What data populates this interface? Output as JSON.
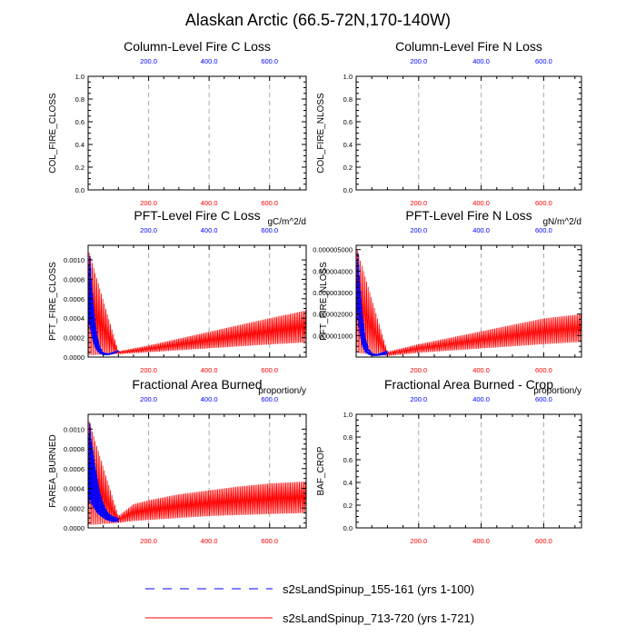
{
  "figure_title": "Alaskan Arctic (66.5-72N,170-140W)",
  "colors": {
    "blue": "#0000ff",
    "red": "#ff0000",
    "black": "#000000",
    "grid": "#aaaaaa"
  },
  "legend": [
    {
      "label": "s2sLandSpinup_155-161 (yrs 1-100)",
      "color": "#0000ff",
      "style": "dashed"
    },
    {
      "label": "s2sLandSpinup_713-720 (yrs 1-721)",
      "color": "#ff0000",
      "style": "solid"
    }
  ],
  "chart_data": [
    {
      "id": "col-fire-closs",
      "type": "line",
      "title": "Column-Level Fire C Loss",
      "ylabel": "COL_FIRE_CLOSS",
      "units": "",
      "xlim": [
        0,
        721
      ],
      "ylim": [
        0,
        1.0
      ],
      "yticks": [
        0.0,
        0.2,
        0.4,
        0.6,
        0.8,
        1.0
      ],
      "ytick_labels": [
        "0.0",
        "0.2",
        "0.4",
        "0.6",
        "0.8",
        "1.0"
      ],
      "top_ticks": [
        200,
        400,
        600
      ],
      "top_tick_labels": [
        "200.0",
        "400.0",
        "600.0"
      ],
      "bottom_ticks": [
        200,
        400,
        600
      ],
      "bottom_tick_labels": [
        "200.0",
        "400.0",
        "600.0"
      ],
      "grid_x": true,
      "series": []
    },
    {
      "id": "col-fire-nloss",
      "type": "line",
      "title": "Column-Level Fire N Loss",
      "ylabel": "COL_FIRE_NLOSS",
      "units": "",
      "xlim": [
        0,
        721
      ],
      "ylim": [
        0,
        1.0
      ],
      "yticks": [
        0.0,
        0.2,
        0.4,
        0.6,
        0.8,
        1.0
      ],
      "ytick_labels": [
        "0.0",
        "0.2",
        "0.4",
        "0.6",
        "0.8",
        "1.0"
      ],
      "top_ticks": [
        200,
        400,
        600
      ],
      "top_tick_labels": [
        "200.0",
        "400.0",
        "600.0"
      ],
      "bottom_ticks": [
        200,
        400,
        600
      ],
      "bottom_tick_labels": [
        "200.0",
        "400.0",
        "600.0"
      ],
      "grid_x": true,
      "series": []
    },
    {
      "id": "pft-fire-closs",
      "type": "line",
      "title": "PFT-Level Fire C Loss",
      "ylabel": "PFT_FIRE_CLOSS",
      "units": "gC/m^2/d",
      "xlim": [
        0,
        721
      ],
      "ylim": [
        0,
        0.00115
      ],
      "yticks": [
        0.0,
        0.0002,
        0.0004,
        0.0006,
        0.0008,
        0.001
      ],
      "ytick_labels": [
        "0.0000",
        "0.0002",
        "0.0004",
        "0.0006",
        "0.0008",
        "0.0010"
      ],
      "top_ticks": [
        200,
        400,
        600
      ],
      "top_tick_labels": [
        "200.0",
        "400.0",
        "600.0"
      ],
      "bottom_ticks": [
        200,
        400,
        600
      ],
      "bottom_tick_labels": [
        "200.0",
        "400.0",
        "600.0"
      ],
      "grid_x": true,
      "series": [
        {
          "name": "s2sLandSpinup_713-720 (yrs 1-721)",
          "color": "#ff0000",
          "style": "solid",
          "x": [
            1,
            100,
            200,
            300,
            400,
            500,
            600,
            721
          ],
          "y_low": [
            2e-05,
            3e-05,
            5e-05,
            7e-05,
            9e-05,
            0.00011,
            0.00013,
            0.00015
          ],
          "y_high": [
            0.0011,
            6e-05,
            0.00012,
            0.00019,
            0.00026,
            0.00033,
            0.0004,
            0.00048
          ],
          "cycle_years": 5
        },
        {
          "name": "s2sLandSpinup_155-161 (yrs 1-100)",
          "color": "#0000ff",
          "style": "dashed",
          "x": [
            1,
            5,
            10,
            20,
            30,
            40,
            50,
            60,
            70,
            80,
            90,
            100
          ],
          "y_low": [
            0.0003,
            0.00035,
            0.00025,
            0.00012,
            6e-05,
            3e-05,
            2e-05,
            2e-05,
            2e-05,
            3e-05,
            4e-05,
            5e-05
          ],
          "y_high": [
            0.0005,
            0.0011,
            0.0008,
            0.00045,
            0.00022,
            0.0001,
            5e-05,
            4e-05,
            4e-05,
            5e-05,
            6e-05,
            7e-05
          ],
          "cycle_years": 2
        }
      ]
    },
    {
      "id": "pft-fire-nloss",
      "type": "line",
      "title": "PFT-Level Fire N Loss",
      "ylabel": "PFT_FIRE_NLOSS",
      "units": "gN/m^2/d",
      "xlim": [
        0,
        721
      ],
      "ylim": [
        0,
        5.2e-06
      ],
      "yticks": [
        0.0,
        1e-06,
        2e-06,
        3e-06,
        4e-06,
        5e-06
      ],
      "ytick_labels": [
        "",
        "0.000001000",
        "0.000002000",
        "0.000003000",
        "0.000004000",
        "0.000005000"
      ],
      "top_ticks": [
        200,
        400,
        600
      ],
      "top_tick_labels": [
        "200.0",
        "400.0",
        "600.0"
      ],
      "bottom_ticks": [
        200,
        400,
        600
      ],
      "bottom_tick_labels": [
        "200.0",
        "400.0",
        "600.0"
      ],
      "grid_x": true,
      "series": [
        {
          "name": "s2sLandSpinup_713-720 (yrs 1-721)",
          "color": "#ff0000",
          "style": "solid",
          "x": [
            1,
            100,
            200,
            300,
            400,
            500,
            600,
            721
          ],
          "y_low": [
            2e-07,
            5e-08,
            2e-07,
            3e-07,
            4e-07,
            5e-07,
            6e-07,
            7e-07
          ],
          "y_high": [
            5.1e-06,
            2.5e-07,
            6e-07,
            9e-07,
            1.2e-06,
            1.5e-06,
            1.8e-06,
            2e-06
          ],
          "cycle_years": 5
        },
        {
          "name": "s2sLandSpinup_155-161 (yrs 1-100)",
          "color": "#0000ff",
          "style": "dashed",
          "x": [
            1,
            5,
            10,
            20,
            30,
            40,
            50,
            60,
            70,
            80,
            90,
            100
          ],
          "y_low": [
            1.5e-06,
            2e-06,
            1.2e-06,
            5e-07,
            2e-07,
            1e-07,
            5e-08,
            5e-08,
            5e-08,
            8e-08,
            1e-07,
            1.2e-07
          ],
          "y_high": [
            3e-06,
            5.1e-06,
            3.8e-06,
            2e-06,
            9e-07,
            4e-07,
            2e-07,
            1.5e-07,
            1.5e-07,
            2e-07,
            2.5e-07,
            3e-07
          ],
          "cycle_years": 2
        }
      ]
    },
    {
      "id": "farea-burned",
      "type": "line",
      "title": "Fractional Area Burned",
      "ylabel": "FAREA_BURNED",
      "units": "proportion/y",
      "xlim": [
        0,
        721
      ],
      "ylim": [
        0,
        0.00115
      ],
      "yticks": [
        0.0,
        0.0002,
        0.0004,
        0.0006,
        0.0008,
        0.001
      ],
      "ytick_labels": [
        "0.0000",
        "0.0002",
        "0.0004",
        "0.0006",
        "0.0008",
        "0.0010"
      ],
      "top_ticks": [
        200,
        400,
        600
      ],
      "top_tick_labels": [
        "200.0",
        "400.0",
        "600.0"
      ],
      "bottom_ticks": [
        200,
        400,
        600
      ],
      "bottom_tick_labels": [
        "200.0",
        "400.0",
        "600.0"
      ],
      "grid_x": true,
      "series": [
        {
          "name": "s2sLandSpinup_713-720 (yrs 1-721)",
          "color": "#ff0000",
          "style": "solid",
          "x": [
            1,
            100,
            150,
            200,
            300,
            400,
            500,
            600,
            721
          ],
          "y_low": [
            3e-05,
            5e-05,
            7e-05,
            8e-05,
            0.0001,
            0.00012,
            0.00013,
            0.00014,
            0.00015
          ],
          "y_high": [
            0.0011,
            0.00012,
            0.00024,
            0.00028,
            0.00034,
            0.00038,
            0.00042,
            0.00045,
            0.00047
          ],
          "cycle_years": 5
        },
        {
          "name": "s2sLandSpinup_155-161 (yrs 1-100)",
          "color": "#0000ff",
          "style": "dashed",
          "x": [
            1,
            5,
            10,
            20,
            30,
            40,
            50,
            60,
            70,
            80,
            90,
            100
          ],
          "y_low": [
            0.0002,
            0.0003,
            0.00025,
            0.0002,
            0.00015,
            0.00012,
            0.0001,
            8e-05,
            7e-05,
            6e-05,
            6e-05,
            6e-05
          ],
          "y_high": [
            0.0005,
            0.0011,
            0.0009,
            0.0007,
            0.0005,
            0.00035,
            0.00025,
            0.00018,
            0.00014,
            0.00012,
            0.00011,
            0.0001
          ],
          "cycle_years": 2
        }
      ]
    },
    {
      "id": "baf-crop",
      "type": "line",
      "title": "Fractional Area Burned - Crop",
      "ylabel": "BAF_CROP",
      "units": "proportion/y",
      "xlim": [
        0,
        721
      ],
      "ylim": [
        0,
        1.0
      ],
      "yticks": [
        0.0,
        0.2,
        0.4,
        0.6,
        0.8,
        1.0
      ],
      "ytick_labels": [
        "0.0",
        "0.2",
        "0.4",
        "0.6",
        "0.8",
        "1.0"
      ],
      "top_ticks": [
        200,
        400,
        600
      ],
      "top_tick_labels": [
        "200.0",
        "400.0",
        "600.0"
      ],
      "bottom_ticks": [
        200,
        400,
        600
      ],
      "bottom_tick_labels": [
        "200.0",
        "400.0",
        "600.0"
      ],
      "grid_x": true,
      "series": []
    }
  ]
}
